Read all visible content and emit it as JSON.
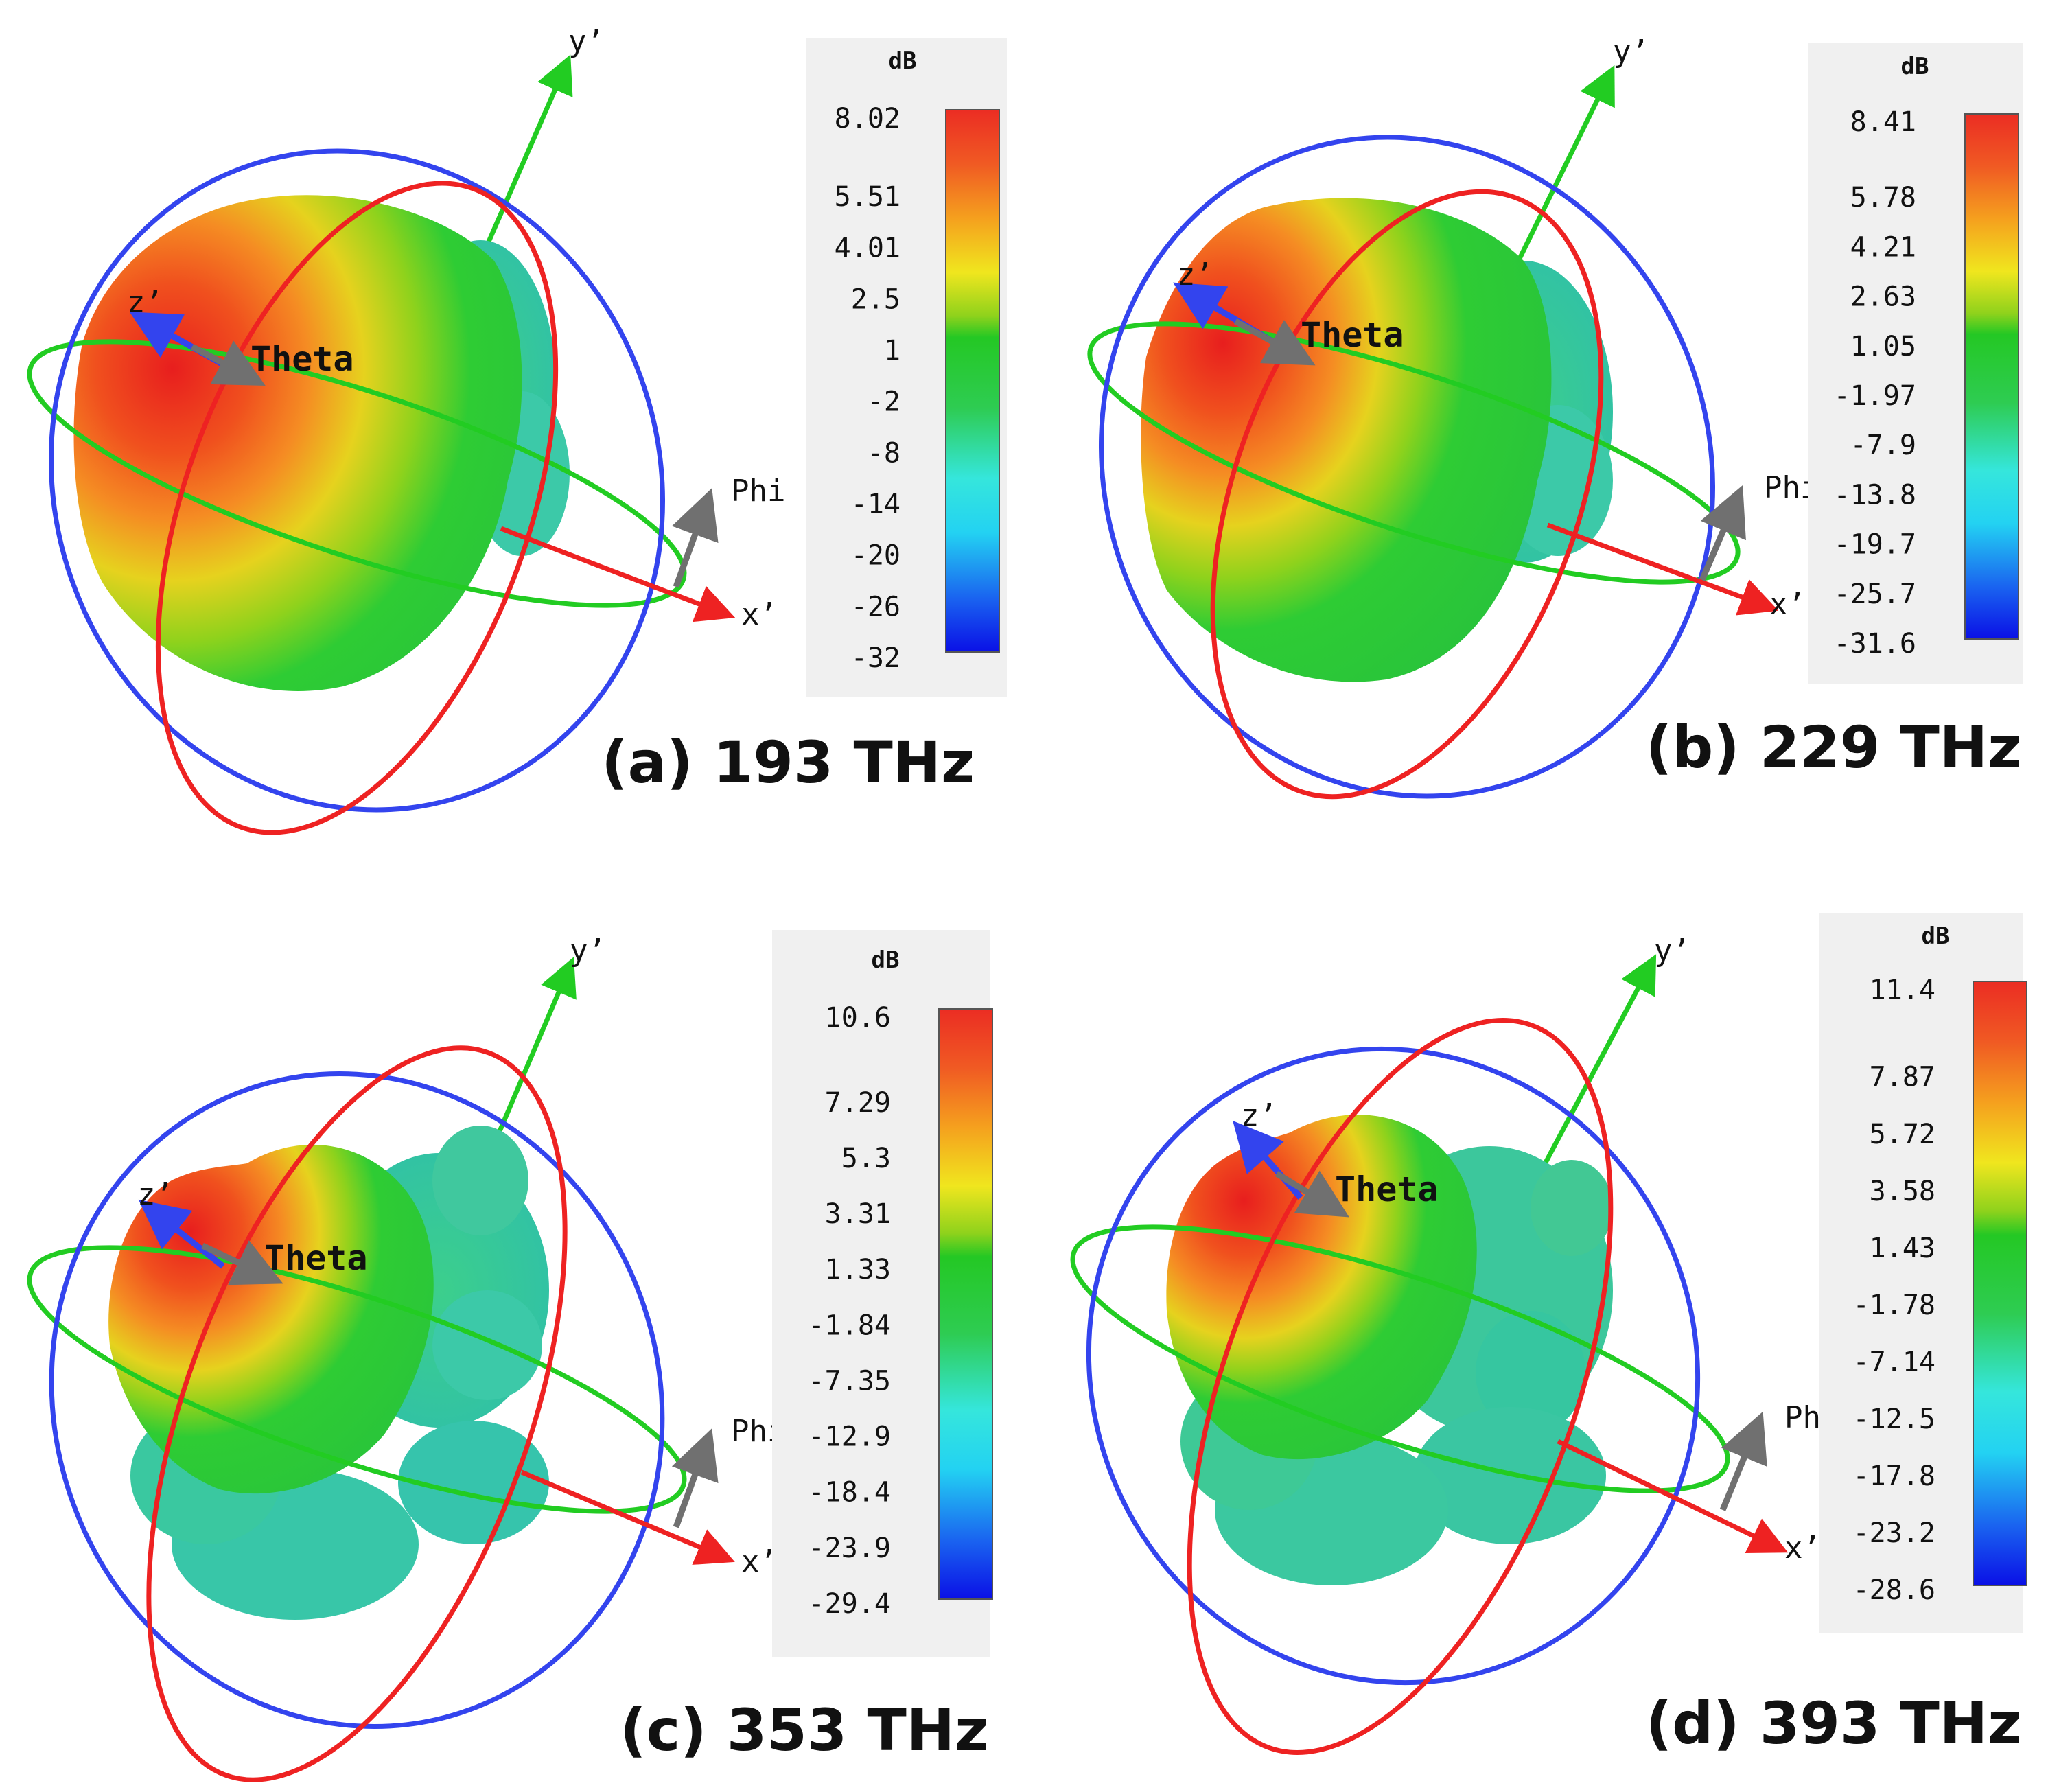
{
  "colormap": [
    "#0a10e6",
    "#1a64f0",
    "#23b4f2",
    "#35e6dc",
    "#3ad8a0",
    "#2ecc52",
    "#24c824",
    "#8fd21c",
    "#f0e61e",
    "#f8b41e",
    "#f57823",
    "#eb2d23"
  ],
  "panels": [
    {
      "id": "a",
      "caption": "(a) 193 THz",
      "unit": "dB",
      "ticks": [
        "8.02",
        "5.51",
        "4.01",
        "2.5",
        "1",
        "-2",
        "-8",
        "-14",
        "-20",
        "-26",
        "-32"
      ],
      "axis_labels": {
        "y": "y’",
        "z": "z’",
        "x": "x’",
        "theta": "Theta",
        "phi": "Phi"
      }
    },
    {
      "id": "b",
      "caption": "(b) 229 THz",
      "unit": "dB",
      "ticks": [
        "8.41",
        "5.78",
        "4.21",
        "2.63",
        "1.05",
        "-1.97",
        "-7.9",
        "-13.8",
        "-19.7",
        "-25.7",
        "-31.6"
      ],
      "axis_labels": {
        "y": "y’",
        "z": "z’",
        "x": "x’",
        "theta": "Theta",
        "phi": "Phi"
      }
    },
    {
      "id": "c",
      "caption": "(c) 353 THz",
      "unit": "dB",
      "ticks": [
        "10.6",
        "7.29",
        "5.3",
        "3.31",
        "1.33",
        "-1.84",
        "-7.35",
        "-12.9",
        "-18.4",
        "-23.9",
        "-29.4"
      ],
      "axis_labels": {
        "y": "y’",
        "z": "z’",
        "x": "x’",
        "theta": "Theta",
        "phi": "Phi"
      }
    },
    {
      "id": "d",
      "caption": "(d) 393 THz",
      "unit": "dB",
      "ticks": [
        "11.4",
        "7.87",
        "5.72",
        "3.58",
        "1.43",
        "-1.78",
        "-7.14",
        "-12.5",
        "-17.8",
        "-23.2",
        "-28.6"
      ],
      "axis_labels": {
        "y": "y’",
        "z": "z’",
        "x": "x’",
        "theta": "Theta",
        "phi": "Phi"
      }
    }
  ]
}
